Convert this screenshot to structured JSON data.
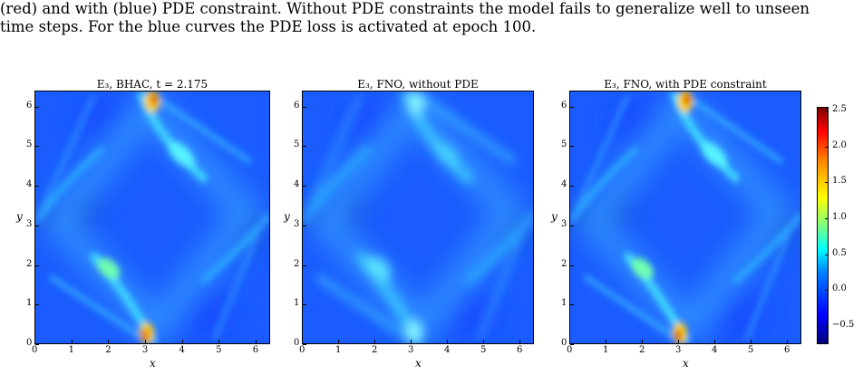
{
  "caption": {
    "line1": "(red) and with (blue) PDE constraint. Without PDE constraints the model fails to generalize well to unseen",
    "line2": "time steps. For the blue curves the PDE loss is activated at epoch 100."
  },
  "panels": [
    {
      "title": "E₃, BHAC, t = 2.175",
      "variant": "sharp"
    },
    {
      "title": "E₃, FNO, without PDE",
      "variant": "smooth"
    },
    {
      "title": "E₃, FNO, with PDE constraint",
      "variant": "sharp"
    }
  ],
  "axes": {
    "xlabel": "x",
    "ylabel": "y",
    "xticks": [
      "0",
      "1",
      "2",
      "3",
      "4",
      "5",
      "6"
    ],
    "yticks": [
      "0",
      "1",
      "2",
      "3",
      "4",
      "5",
      "6"
    ],
    "range": [
      0,
      6.4
    ]
  },
  "colorbar": {
    "ticks": [
      "2.5",
      "2.0",
      "1.5",
      "1.0",
      "0.5",
      "0.0",
      "−0.5"
    ],
    "range": [
      -0.75,
      2.55
    ],
    "colormap": "jet"
  }
}
